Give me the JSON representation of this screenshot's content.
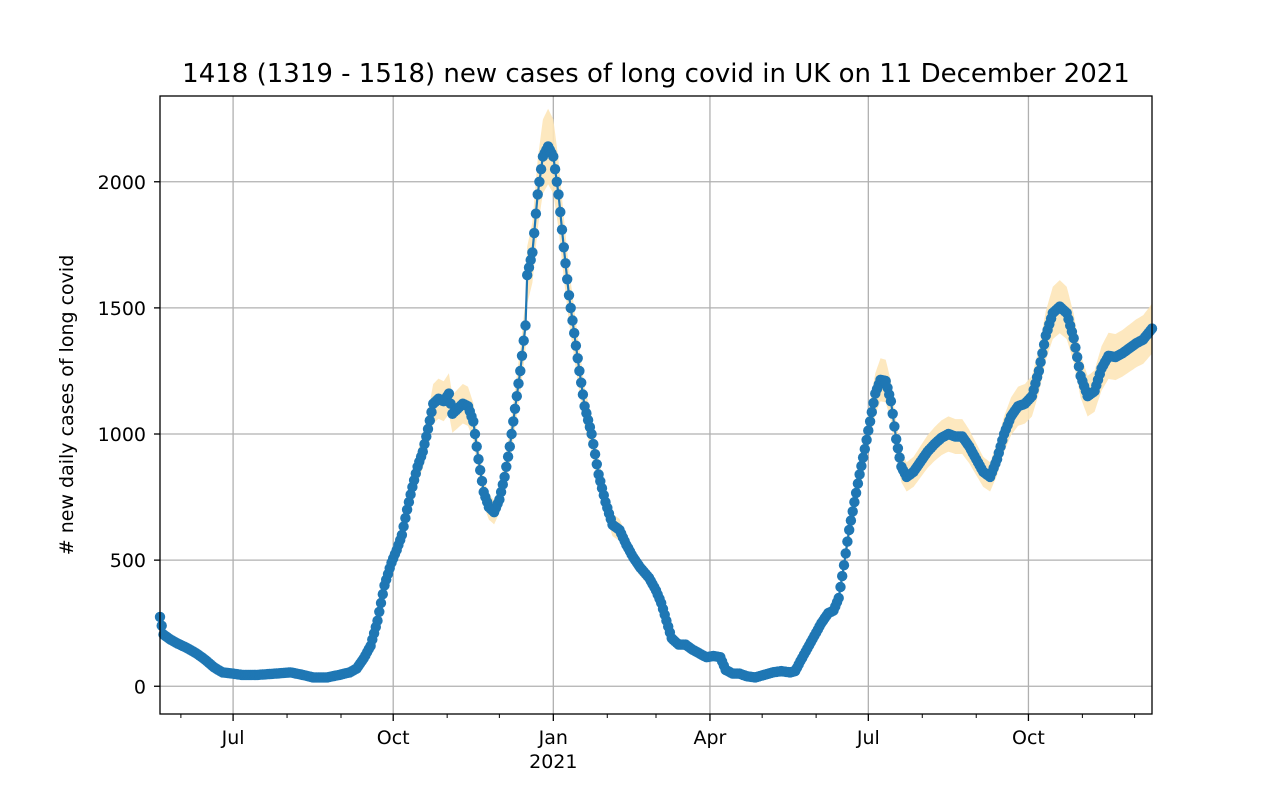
{
  "chart_data": {
    "type": "line",
    "title": "1418 (1319 - 1518) new cases of long covid in UK on 11 December 2021",
    "xlabel": "",
    "ylabel": "# new daily cases of long covid",
    "xlim": [
      "2020-05-20",
      "2021-12-11"
    ],
    "ylim": [
      -110,
      2340
    ],
    "grid": true,
    "y_ticks": [
      0,
      500,
      1000,
      1500,
      2000
    ],
    "y_tick_labels": [
      "0",
      "500",
      "1000",
      "1500",
      "2000"
    ],
    "x_major_ticks": [
      {
        "date": "2020-07-01",
        "label": "Jul"
      },
      {
        "date": "2020-10-01",
        "label": "Oct"
      },
      {
        "date": "2021-01-01",
        "label": "Jan"
      },
      {
        "date": "2021-04-01",
        "label": "Apr"
      },
      {
        "date": "2021-07-01",
        "label": "Jul"
      },
      {
        "date": "2021-10-01",
        "label": "Oct"
      }
    ],
    "x_minor_ticks": [
      "2020-06-01",
      "2020-08-01",
      "2020-09-01",
      "2020-11-01",
      "2020-12-01",
      "2021-02-01",
      "2021-03-01",
      "2021-05-01",
      "2021-06-01",
      "2021-08-01",
      "2021-09-01",
      "2021-11-01",
      "2021-12-01"
    ],
    "year_label": {
      "date": "2021-01-01",
      "label": "2021"
    },
    "colors": {
      "line": "#1f77b4",
      "band": "#fde5b8",
      "grid": "#b0b0b0"
    },
    "series": [
      {
        "points": [
          [
            "2020-05-20",
            275
          ],
          [
            "2020-05-22",
            205
          ],
          [
            "2020-05-26",
            185
          ],
          [
            "2020-05-30",
            170
          ],
          [
            "2020-06-05",
            150
          ],
          [
            "2020-06-10",
            130
          ],
          [
            "2020-06-15",
            105
          ],
          [
            "2020-06-20",
            75
          ],
          [
            "2020-06-25",
            55
          ],
          [
            "2020-07-01",
            50
          ],
          [
            "2020-07-06",
            45
          ],
          [
            "2020-07-15",
            45
          ],
          [
            "2020-07-25",
            50
          ],
          [
            "2020-08-03",
            55
          ],
          [
            "2020-08-10",
            45
          ],
          [
            "2020-08-16",
            35
          ],
          [
            "2020-08-24",
            35
          ],
          [
            "2020-08-31",
            45
          ],
          [
            "2020-09-06",
            55
          ],
          [
            "2020-09-10",
            70
          ],
          [
            "2020-09-14",
            110
          ],
          [
            "2020-09-18",
            160
          ],
          [
            "2020-09-22",
            260
          ],
          [
            "2020-09-26",
            400
          ],
          [
            "2020-09-30",
            490
          ],
          [
            "2020-10-03",
            540
          ],
          [
            "2020-10-06",
            600
          ],
          [
            "2020-10-09",
            700
          ],
          [
            "2020-10-12",
            790
          ],
          [
            "2020-10-15",
            870
          ],
          [
            "2020-10-18",
            930
          ],
          [
            "2020-10-21",
            1020
          ],
          [
            "2020-10-24",
            1120
          ],
          [
            "2020-10-27",
            1140
          ],
          [
            "2020-10-30",
            1130
          ],
          [
            "2020-11-02",
            1160
          ],
          [
            "2020-11-04",
            1080
          ],
          [
            "2020-11-07",
            1100
          ],
          [
            "2020-11-10",
            1120
          ],
          [
            "2020-11-13",
            1110
          ],
          [
            "2020-11-16",
            1050
          ],
          [
            "2020-11-19",
            900
          ],
          [
            "2020-11-22",
            770
          ],
          [
            "2020-11-25",
            710
          ],
          [
            "2020-11-28",
            690
          ],
          [
            "2020-12-01",
            740
          ],
          [
            "2020-12-04",
            830
          ],
          [
            "2020-12-07",
            950
          ],
          [
            "2020-12-10",
            1100
          ],
          [
            "2020-12-13",
            1250
          ],
          [
            "2020-12-16",
            1430
          ],
          [
            "2020-12-17",
            1630
          ],
          [
            "2020-12-20",
            1720
          ],
          [
            "2020-12-23",
            1950
          ],
          [
            "2020-12-26",
            2100
          ],
          [
            "2020-12-29",
            2140
          ],
          [
            "2021-01-01",
            2100
          ],
          [
            "2021-01-04",
            1950
          ],
          [
            "2021-01-07",
            1740
          ],
          [
            "2021-01-10",
            1550
          ],
          [
            "2021-01-13",
            1400
          ],
          [
            "2021-01-16",
            1250
          ],
          [
            "2021-01-19",
            1110
          ],
          [
            "2021-01-23",
            1000
          ],
          [
            "2021-01-27",
            840
          ],
          [
            "2021-01-31",
            730
          ],
          [
            "2021-02-04",
            640
          ],
          [
            "2021-02-08",
            620
          ],
          [
            "2021-02-12",
            560
          ],
          [
            "2021-02-16",
            510
          ],
          [
            "2021-02-20",
            470
          ],
          [
            "2021-02-25",
            430
          ],
          [
            "2021-03-01",
            380
          ],
          [
            "2021-03-04",
            330
          ],
          [
            "2021-03-07",
            260
          ],
          [
            "2021-03-10",
            190
          ],
          [
            "2021-03-14",
            165
          ],
          [
            "2021-03-18",
            165
          ],
          [
            "2021-03-22",
            145
          ],
          [
            "2021-03-26",
            130
          ],
          [
            "2021-03-30",
            115
          ],
          [
            "2021-04-03",
            120
          ],
          [
            "2021-04-07",
            115
          ],
          [
            "2021-04-10",
            65
          ],
          [
            "2021-04-14",
            50
          ],
          [
            "2021-04-18",
            50
          ],
          [
            "2021-04-22",
            40
          ],
          [
            "2021-04-27",
            35
          ],
          [
            "2021-05-02",
            45
          ],
          [
            "2021-05-07",
            55
          ],
          [
            "2021-05-12",
            60
          ],
          [
            "2021-05-17",
            55
          ],
          [
            "2021-05-20",
            60
          ],
          [
            "2021-05-23",
            100
          ],
          [
            "2021-05-27",
            150
          ],
          [
            "2021-05-31",
            200
          ],
          [
            "2021-06-04",
            250
          ],
          [
            "2021-06-08",
            290
          ],
          [
            "2021-06-11",
            300
          ],
          [
            "2021-06-14",
            350
          ],
          [
            "2021-06-17",
            480
          ],
          [
            "2021-06-20",
            620
          ],
          [
            "2021-06-23",
            730
          ],
          [
            "2021-06-26",
            840
          ],
          [
            "2021-06-29",
            940
          ],
          [
            "2021-07-02",
            1050
          ],
          [
            "2021-07-05",
            1160
          ],
          [
            "2021-07-08",
            1215
          ],
          [
            "2021-07-11",
            1210
          ],
          [
            "2021-07-14",
            1130
          ],
          [
            "2021-07-17",
            980
          ],
          [
            "2021-07-20",
            870
          ],
          [
            "2021-07-23",
            830
          ],
          [
            "2021-07-27",
            850
          ],
          [
            "2021-07-31",
            890
          ],
          [
            "2021-08-04",
            930
          ],
          [
            "2021-08-08",
            960
          ],
          [
            "2021-08-12",
            985
          ],
          [
            "2021-08-16",
            1000
          ],
          [
            "2021-08-20",
            990
          ],
          [
            "2021-08-24",
            990
          ],
          [
            "2021-08-28",
            950
          ],
          [
            "2021-09-01",
            900
          ],
          [
            "2021-09-05",
            850
          ],
          [
            "2021-09-09",
            830
          ],
          [
            "2021-09-13",
            900
          ],
          [
            "2021-09-17",
            1000
          ],
          [
            "2021-09-21",
            1070
          ],
          [
            "2021-09-25",
            1110
          ],
          [
            "2021-09-29",
            1120
          ],
          [
            "2021-10-03",
            1150
          ],
          [
            "2021-10-07",
            1250
          ],
          [
            "2021-10-11",
            1390
          ],
          [
            "2021-10-15",
            1480
          ],
          [
            "2021-10-19",
            1505
          ],
          [
            "2021-10-23",
            1480
          ],
          [
            "2021-10-27",
            1380
          ],
          [
            "2021-10-31",
            1230
          ],
          [
            "2021-11-04",
            1150
          ],
          [
            "2021-11-08",
            1170
          ],
          [
            "2021-11-12",
            1260
          ],
          [
            "2021-11-16",
            1310
          ],
          [
            "2021-11-20",
            1305
          ],
          [
            "2021-11-24",
            1320
          ],
          [
            "2021-11-28",
            1340
          ],
          [
            "2021-12-02",
            1360
          ],
          [
            "2021-12-06",
            1375
          ],
          [
            "2021-12-11",
            1418
          ]
        ]
      }
    ]
  }
}
